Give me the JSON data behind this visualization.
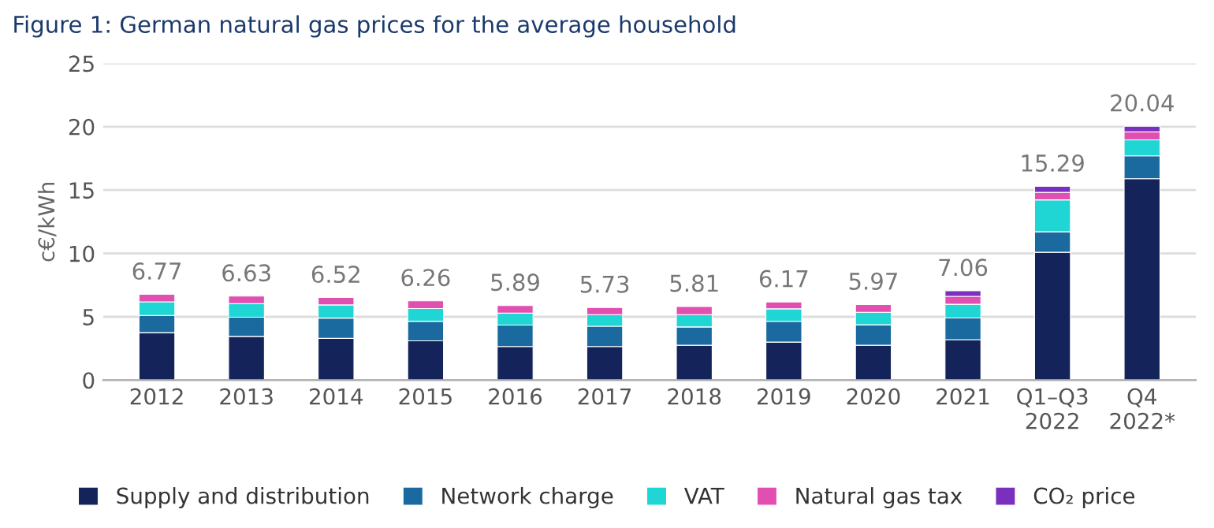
{
  "chart_data": {
    "type": "bar",
    "title": "Figure 1: German natural gas prices for the average household",
    "ylabel": "c€/kWh",
    "categories": [
      "2012",
      "2013",
      "2014",
      "2015",
      "2016",
      "2017",
      "2018",
      "2019",
      "2020",
      "2021",
      "Q1–Q3\n2022",
      "Q4\n2022*"
    ],
    "stacked": true,
    "series": [
      {
        "name": "Supply and distribution",
        "color": "#14245a",
        "values": [
          3.75,
          3.45,
          3.3,
          3.1,
          2.65,
          2.65,
          2.75,
          3.0,
          2.75,
          3.2,
          10.09,
          15.9
        ]
      },
      {
        "name": "Network charge",
        "color": "#1a6aa0",
        "values": [
          1.35,
          1.52,
          1.6,
          1.55,
          1.7,
          1.6,
          1.45,
          1.64,
          1.62,
          1.71,
          1.62,
          1.8
        ]
      },
      {
        "name": "VAT",
        "color": "#1fd6d4",
        "values": [
          1.08,
          1.07,
          1.04,
          1.0,
          0.94,
          0.92,
          0.97,
          0.99,
          0.99,
          1.08,
          2.52,
          1.26
        ]
      },
      {
        "name": "Natural gas tax",
        "color": "#e14fb0",
        "values": [
          0.59,
          0.59,
          0.58,
          0.61,
          0.6,
          0.56,
          0.64,
          0.54,
          0.61,
          0.63,
          0.59,
          0.63
        ]
      },
      {
        "name": "CO₂ price",
        "color": "#7b2fbe",
        "values": [
          null,
          null,
          null,
          null,
          null,
          null,
          null,
          null,
          null,
          0.44,
          0.47,
          0.45
        ]
      }
    ],
    "totals": [
      "6.77",
      "6.63",
      "6.52",
      "6.26",
      "5.89",
      "5.73",
      "5.81",
      "6.17",
      "5.97",
      "7.06",
      "15.29",
      "20.04"
    ],
    "ylim": [
      0,
      25
    ],
    "yticks": [
      0,
      5,
      10,
      15,
      20,
      25
    ],
    "grid": "y",
    "legend": "bottom"
  }
}
